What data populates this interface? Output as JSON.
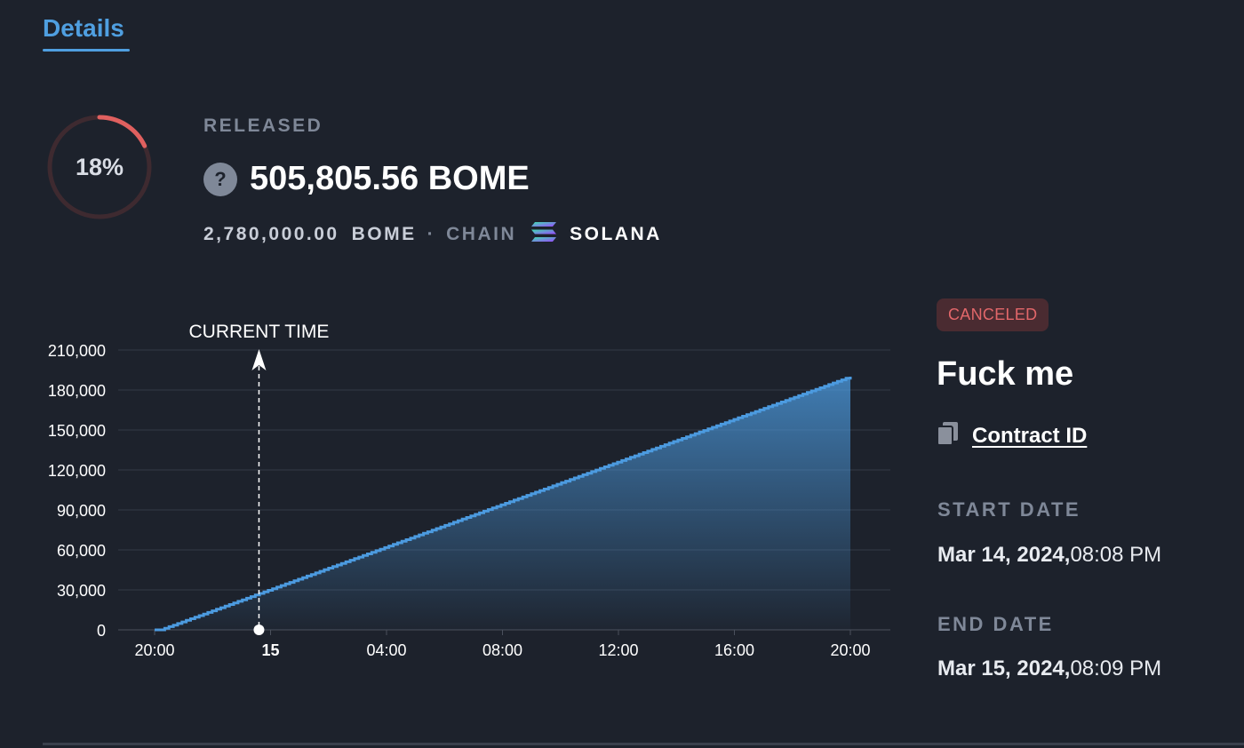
{
  "tabs": {
    "active_label": "Details"
  },
  "progress": {
    "percent_label": "18%",
    "fraction": 0.18,
    "track_color": "#3e2a30",
    "fill_color": "#e0605f"
  },
  "released": {
    "label": "RELEASED",
    "help_glyph": "?",
    "amount": "505,805.56 BOME",
    "total_amount": "2,780,000.00",
    "token": "BOME",
    "separator": "·",
    "chain_label": "CHAIN",
    "chain_icon": "solana-icon",
    "chain_name": "SOLANA"
  },
  "chart_data": {
    "type": "area",
    "annotation": "CURRENT TIME",
    "x_tick_labels": [
      "20:00",
      "15",
      "04:00",
      "08:00",
      "12:00",
      "16:00",
      "20:00"
    ],
    "y_tick_labels": [
      "0",
      "30,000",
      "60,000",
      "90,000",
      "120,000",
      "150,000",
      "180,000",
      "210,000"
    ],
    "ylim": [
      0,
      210000
    ],
    "x_hours": [
      0,
      24
    ],
    "x_tick_hours": [
      0,
      4,
      8,
      12,
      16,
      20,
      24
    ],
    "current_time_hour": 3.6,
    "series": [
      {
        "x": [
          0,
          0.2,
          24
        ],
        "y": [
          0,
          0,
          190000
        ]
      }
    ],
    "line_color": "#4c9be0",
    "grid": true,
    "legend": "none"
  },
  "status": {
    "badge": "CANCELED",
    "badge_color": "#e2676a"
  },
  "stream": {
    "title": "Fuck me",
    "copy_icon": "copy-icon",
    "contract_link": "Contract ID"
  },
  "dates": {
    "start_label": "START DATE",
    "start_date": "Mar 14, 2024,",
    "start_time": "08:08 PM",
    "end_label": "END DATE",
    "end_date": "Mar 15, 2024,",
    "end_time": "08:09 PM"
  }
}
